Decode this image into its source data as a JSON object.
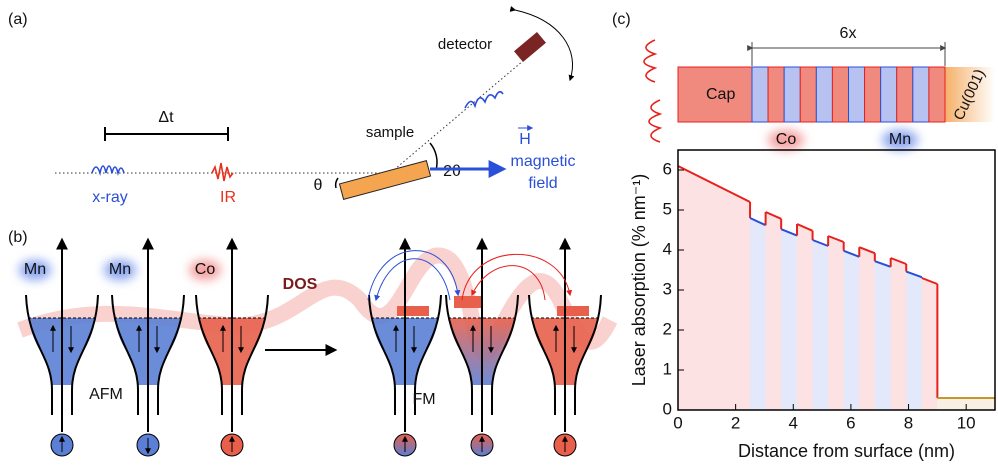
{
  "panel_a": {
    "label": "(a)",
    "delta_t": "Δt",
    "xray": "x-ray",
    "ir": "IR",
    "sample": "sample",
    "theta": "θ",
    "two_theta": "2θ",
    "detector": "detector",
    "field_symbol": "H",
    "field_lines": [
      "magnetic",
      "field"
    ]
  },
  "panel_b": {
    "label": "(b)",
    "well_labels": [
      "Mn",
      "Mn",
      "Co"
    ],
    "dos": "DOS",
    "afm": "AFM",
    "fm": "FM"
  },
  "panel_c": {
    "label": "(c)",
    "cap": "Cap",
    "substrate": "Cu(001)",
    "repeat": "6x",
    "co": "Co",
    "mn": "Mn"
  },
  "chart_data": {
    "type": "line",
    "xlabel": "Distance from surface (nm)",
    "ylabel": "Laser absorption (% nm⁻¹)",
    "xlim": [
      0,
      11
    ],
    "ylim": [
      0,
      6.5
    ],
    "xticks": [
      0,
      2,
      4,
      6,
      8,
      10
    ],
    "yticks": [
      0,
      1,
      2,
      3,
      4,
      5,
      6
    ],
    "series": [
      {
        "color": "#e8201c",
        "x": [
          0,
          2.5
        ],
        "values": [
          6.1,
          5.2
        ]
      },
      {
        "color": "#2a4fd8",
        "x": [
          2.5,
          3.04
        ],
        "values": [
          4.8,
          4.62
        ]
      },
      {
        "color": "#e8201c",
        "x": [
          3.04,
          3.58
        ],
        "values": [
          4.95,
          4.78
        ]
      },
      {
        "color": "#2a4fd8",
        "x": [
          3.58,
          4.13
        ],
        "values": [
          4.52,
          4.36
        ]
      },
      {
        "color": "#e8201c",
        "x": [
          4.13,
          4.67
        ],
        "values": [
          4.65,
          4.48
        ]
      },
      {
        "color": "#2a4fd8",
        "x": [
          4.67,
          5.21
        ],
        "values": [
          4.25,
          4.1
        ]
      },
      {
        "color": "#e8201c",
        "x": [
          5.21,
          5.75
        ],
        "values": [
          4.35,
          4.2
        ]
      },
      {
        "color": "#2a4fd8",
        "x": [
          5.75,
          6.29
        ],
        "values": [
          3.98,
          3.83
        ]
      },
      {
        "color": "#e8201c",
        "x": [
          6.29,
          6.83
        ],
        "values": [
          4.07,
          3.92
        ]
      },
      {
        "color": "#2a4fd8",
        "x": [
          6.83,
          7.38
        ],
        "values": [
          3.72,
          3.58
        ]
      },
      {
        "color": "#e8201c",
        "x": [
          7.38,
          7.92
        ],
        "values": [
          3.8,
          3.65
        ]
      },
      {
        "color": "#2a4fd8",
        "x": [
          7.92,
          8.46
        ],
        "values": [
          3.46,
          3.32
        ]
      },
      {
        "color": "#e8201c",
        "x": [
          8.46,
          9.0
        ],
        "values": [
          3.3,
          3.15
        ]
      },
      {
        "color": "#c8952a",
        "x": [
          9.0,
          11
        ],
        "values": [
          0.3,
          0.3
        ]
      }
    ]
  }
}
